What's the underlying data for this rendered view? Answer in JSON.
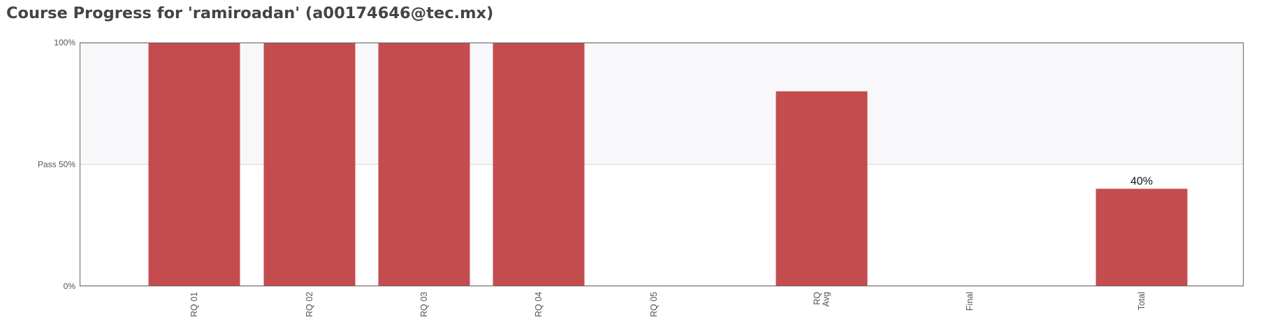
{
  "page": {
    "title": "Course Progress for 'ramiroadan' (a00174646@tec.mx)"
  },
  "chart_data": {
    "type": "bar",
    "title": "",
    "xlabel": "",
    "ylabel": "",
    "ylim": [
      0,
      100
    ],
    "y_ticks": [
      {
        "value": 0,
        "label": "0%"
      },
      {
        "value": 50,
        "label": "Pass 50%"
      },
      {
        "value": 100,
        "label": "100%"
      }
    ],
    "categories": [
      [
        "RQ 01"
      ],
      [
        "RQ 02"
      ],
      [
        "RQ 03"
      ],
      [
        "RQ 04"
      ],
      [
        "RQ 05"
      ],
      [
        "RQ",
        "Avg"
      ],
      [
        "Final"
      ],
      [
        "Total"
      ]
    ],
    "values": [
      100,
      100,
      100,
      100,
      0,
      80,
      0,
      40
    ],
    "data_labels": [
      "",
      "",
      "",
      "",
      "",
      "",
      "",
      "40%"
    ],
    "grid": true,
    "legend": "none",
    "colors": {
      "bar": "#c44c4e",
      "pass_band": "#f8f8fb",
      "grid": "#d9d9d9",
      "axis": "#666666"
    }
  }
}
